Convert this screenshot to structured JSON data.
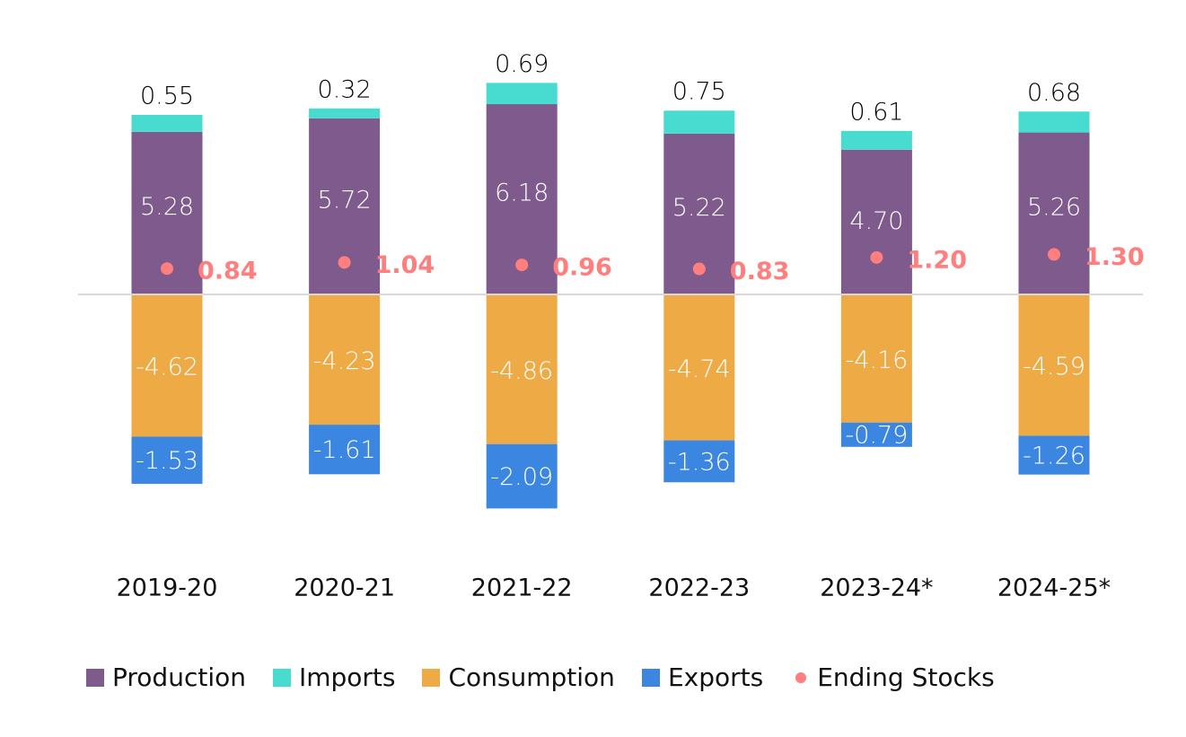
{
  "chart_data": {
    "type": "bar",
    "stacked": true,
    "title": "",
    "xlabel": "",
    "ylabel": "",
    "ylim": [
      -7.0,
      7.5
    ],
    "grid": false,
    "zero_line": true,
    "legend_position": "bottom",
    "categories": [
      "2019-20",
      "2020-21",
      "2021-22",
      "2022-23",
      "2023-24*",
      "2024-25*"
    ],
    "series": [
      {
        "name": "Production",
        "kind": "bar",
        "color": "#7f5a8c",
        "label_color": "#ffffff",
        "values": [
          5.28,
          5.72,
          6.18,
          5.22,
          4.7,
          5.26
        ],
        "labels": [
          "5.28",
          "5.72",
          "6.18",
          "5.22",
          "4.70",
          "5.26"
        ]
      },
      {
        "name": "Imports",
        "kind": "bar",
        "color": "#48dbcf",
        "label_color": "#000000",
        "values": [
          0.55,
          0.32,
          0.69,
          0.75,
          0.61,
          0.68
        ],
        "labels": [
          "0.55",
          "0.32",
          "0.69",
          "0.75",
          "0.61",
          "0.68"
        ]
      },
      {
        "name": "Consumption",
        "kind": "bar",
        "color": "#eeaa45",
        "label_color": "#ffffff",
        "values": [
          -4.62,
          -4.23,
          -4.86,
          -4.74,
          -4.16,
          -4.59
        ],
        "labels": [
          "-4.62",
          "-4.23",
          "-4.86",
          "-4.74",
          "-4.16",
          "-4.59"
        ]
      },
      {
        "name": "Exports",
        "kind": "bar",
        "color": "#3b86e0",
        "label_color": "#ffffff",
        "values": [
          -1.53,
          -1.61,
          -2.09,
          -1.36,
          -0.79,
          -1.26
        ],
        "labels": [
          "-1.53",
          "-1.61",
          "-2.09",
          "-1.36",
          "-0.79",
          "-1.26"
        ]
      },
      {
        "name": "Ending Stocks",
        "kind": "point",
        "color": "#ff7f7f",
        "label_color": "#ff7f7f",
        "values": [
          0.84,
          1.04,
          0.96,
          0.83,
          1.2,
          1.3
        ],
        "labels": [
          "0.84",
          "1.04",
          "0.96",
          "0.83",
          "1.20",
          "1.30"
        ]
      }
    ],
    "zero_line_color": "#d9d9d9"
  },
  "legend": {
    "items": [
      {
        "label": "Production",
        "color": "#7f5a8c",
        "shape": "square"
      },
      {
        "label": "Imports",
        "color": "#48dbcf",
        "shape": "square"
      },
      {
        "label": "Consumption",
        "color": "#eeaa45",
        "shape": "square"
      },
      {
        "label": "Exports",
        "color": "#3b86e0",
        "shape": "square"
      },
      {
        "label": "Ending Stocks",
        "color": "#ff7f7f",
        "shape": "circle"
      }
    ]
  }
}
